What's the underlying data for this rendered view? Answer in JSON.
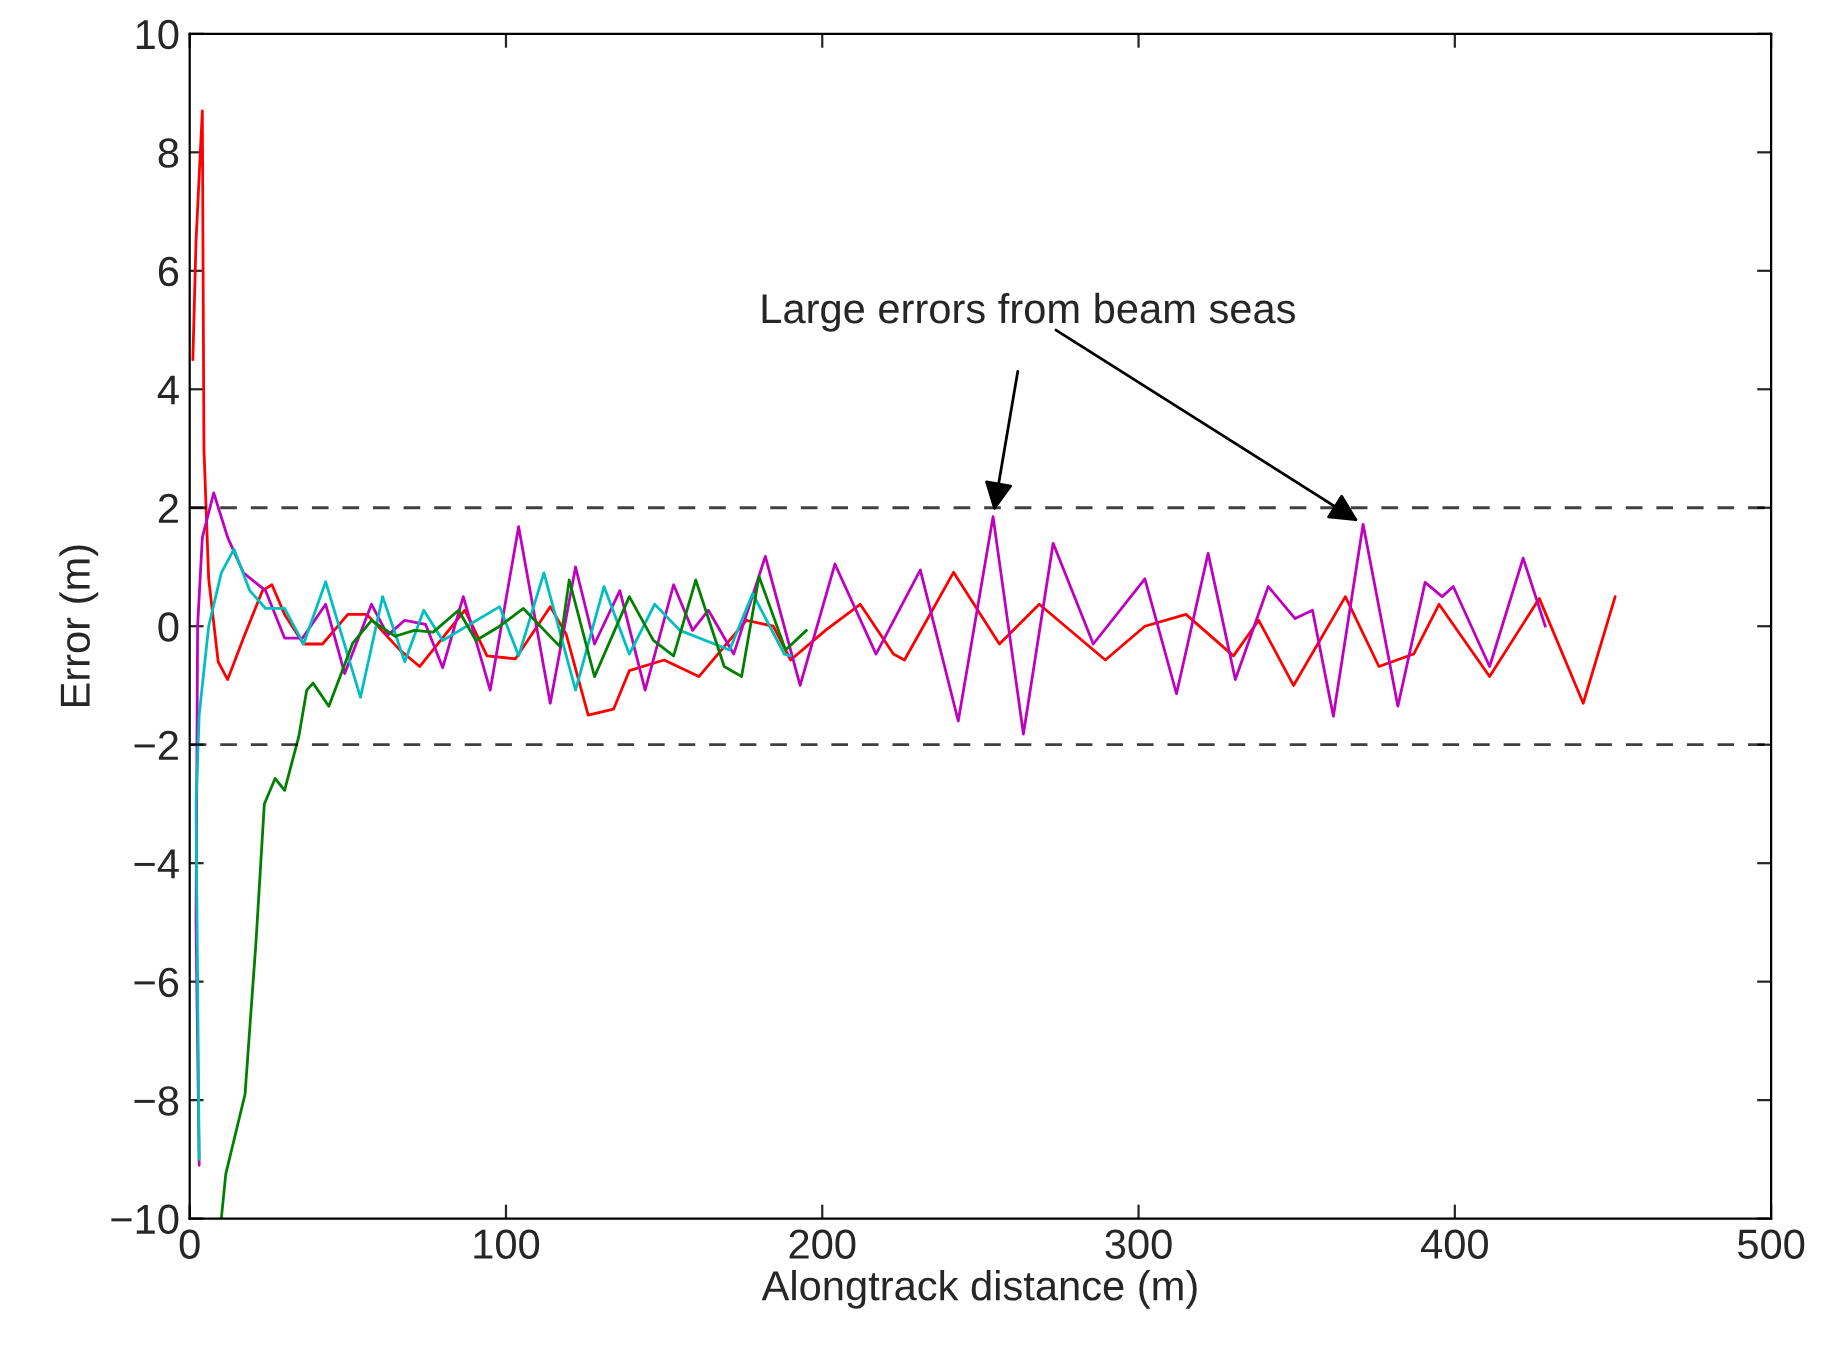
{
  "chart_data": {
    "type": "line",
    "xlabel": "Alongtrack distance (m)",
    "ylabel": "Error (m)",
    "xlim": [
      0,
      500
    ],
    "xticks": [
      0,
      100,
      200,
      300,
      400,
      500
    ],
    "ylim": [
      -10,
      10
    ],
    "yticks": [
      -10,
      -8,
      -6,
      -4,
      -2,
      0,
      2,
      4,
      6,
      8,
      10
    ],
    "grid": false,
    "legend": false,
    "ref_lines": [
      {
        "axis": "y",
        "value": 2,
        "color": "#000000",
        "line_style": "dashed"
      },
      {
        "axis": "y",
        "value": -2,
        "color": "#000000",
        "line_style": "dashed"
      }
    ],
    "annotations": [
      {
        "text": "Large errors from beam seas",
        "x": 254,
        "y": 1.85
      }
    ],
    "series": [
      {
        "color": "#ff0000",
        "x": [
          1,
          2,
          4,
          4.5,
          6,
          9,
          12,
          17,
          23,
          26,
          30,
          36,
          42,
          50,
          56,
          66.4,
          72.7,
          87,
          94,
          103,
          114,
          119,
          126,
          134,
          139,
          150,
          161,
          176,
          184.5,
          190,
          201,
          212,
          222.5,
          226,
          241.5,
          256,
          268.6,
          289.5,
          302,
          315,
          330,
          338,
          349,
          365.4,
          376,
          387,
          395,
          411,
          426.7,
          440.6,
          450.7
        ],
        "values": [
          4.5,
          6.5,
          8.7,
          3,
          0.8,
          -0.6,
          -0.9,
          -0.2,
          0.6,
          0.7,
          0.2,
          -0.3,
          -0.3,
          0.2,
          0.2,
          -0.4,
          -0.68,
          0.27,
          -0.5,
          -0.55,
          0.33,
          -0.13,
          -1.5,
          -1.4,
          -0.75,
          -0.57,
          -0.85,
          0.1,
          0,
          -0.57,
          -0.07,
          0.37,
          -0.47,
          -0.57,
          0.91,
          -0.3,
          0.37,
          -0.57,
          0,
          0.2,
          -0.5,
          0.1,
          -1.0,
          0.5,
          -0.68,
          -0.47,
          0.37,
          -0.85,
          0.47,
          -1.3,
          0.5
        ]
      },
      {
        "color": "#bf00bf",
        "x": [
          3,
          2,
          2.5,
          4,
          7.6,
          12,
          17,
          24,
          30,
          35.7,
          43,
          49,
          57.5,
          62.6,
          68,
          74.6,
          80,
          86.5,
          95,
          104,
          114,
          122,
          128,
          136,
          144,
          153,
          159,
          164,
          172,
          182,
          193,
          204,
          217,
          231,
          243,
          254,
          263.6,
          273,
          285.7,
          302,
          312,
          322,
          330.6,
          341,
          349.5,
          355,
          361.6,
          371,
          382,
          390.6,
          396,
          399.5,
          411,
          421.6,
          428.6
        ],
        "values": [
          -9.1,
          -5,
          0,
          1.5,
          2.25,
          1.5,
          0.9,
          0.6,
          -0.2,
          -0.2,
          0.37,
          -0.8,
          0.37,
          -0.15,
          0.1,
          0.03,
          -0.7,
          0.5,
          -1.08,
          1.68,
          -1.3,
          1.0,
          -0.3,
          0.6,
          -1.08,
          0.7,
          -0.07,
          0.27,
          -0.47,
          1.18,
          -1.0,
          1.05,
          -0.47,
          0.95,
          -1.6,
          1.85,
          -1.82,
          1.4,
          -0.3,
          0.8,
          -1.14,
          1.23,
          -0.9,
          0.67,
          0.13,
          0.27,
          -1.52,
          1.72,
          -1.35,
          0.74,
          0.5,
          0.67,
          -0.68,
          1.15,
          0
        ]
      },
      {
        "color": "#00bfbf",
        "x": [
          3,
          2,
          3,
          6,
          10,
          14,
          19,
          24,
          30,
          36,
          43,
          54,
          61,
          68,
          74,
          80,
          98,
          104,
          112,
          122,
          131,
          139,
          147,
          155,
          170.7,
          178,
          188,
          190
        ],
        "values": [
          -9,
          -3,
          -1.5,
          0,
          0.9,
          1.3,
          0.6,
          0.3,
          0.3,
          -0.3,
          0.75,
          -1.2,
          0.5,
          -0.6,
          0.27,
          -0.24,
          0.33,
          -0.5,
          0.9,
          -1.08,
          0.67,
          -0.47,
          0.37,
          -0.07,
          -0.4,
          0.55,
          -0.47,
          -0.5
        ]
      },
      {
        "color": "#008000",
        "x": [
          10,
          11.4,
          17.5,
          21,
          23.6,
          27,
          30,
          34.5,
          37,
          39,
          44,
          51.5,
          57.5,
          65,
          71,
          77,
          85,
          90.5,
          98,
          105.5,
          117,
          120,
          128,
          139,
          146.6,
          153,
          160,
          169,
          174.5,
          180,
          188.4,
          195
        ],
        "values": [
          -10,
          -9.25,
          -7.9,
          -5.3,
          -3.0,
          -2.57,
          -2.77,
          -1.86,
          -1.08,
          -0.96,
          -1.35,
          -0.29,
          0.1,
          -0.17,
          -0.07,
          -0.1,
          0.27,
          -0.24,
          0,
          0.3,
          -0.34,
          0.78,
          -0.85,
          0.5,
          -0.24,
          -0.5,
          0.78,
          -0.68,
          -0.85,
          0.84,
          -0.4,
          -0.07
        ]
      }
    ]
  }
}
